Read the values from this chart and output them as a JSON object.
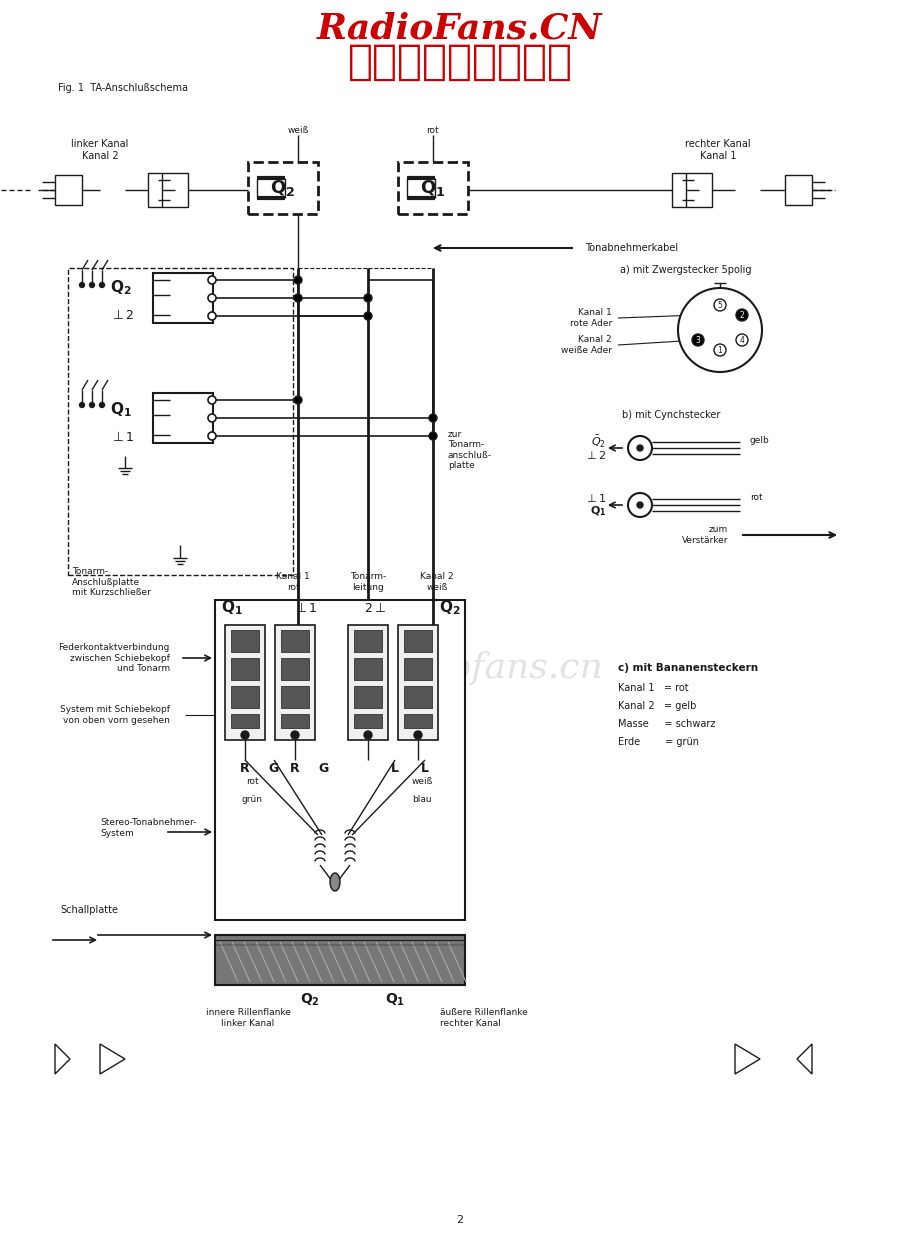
{
  "title1": "RadioFans.CN",
  "title2": "收音机爱好者资料库",
  "fig_label": "Fig. 1  TA-Anschlußschema",
  "page_number": "2",
  "bg_color": "#ffffff",
  "title_color": "#cc0000",
  "lc": "#1a1a1a",
  "fig_width": 9.2,
  "fig_height": 12.49,
  "dpi": 100
}
